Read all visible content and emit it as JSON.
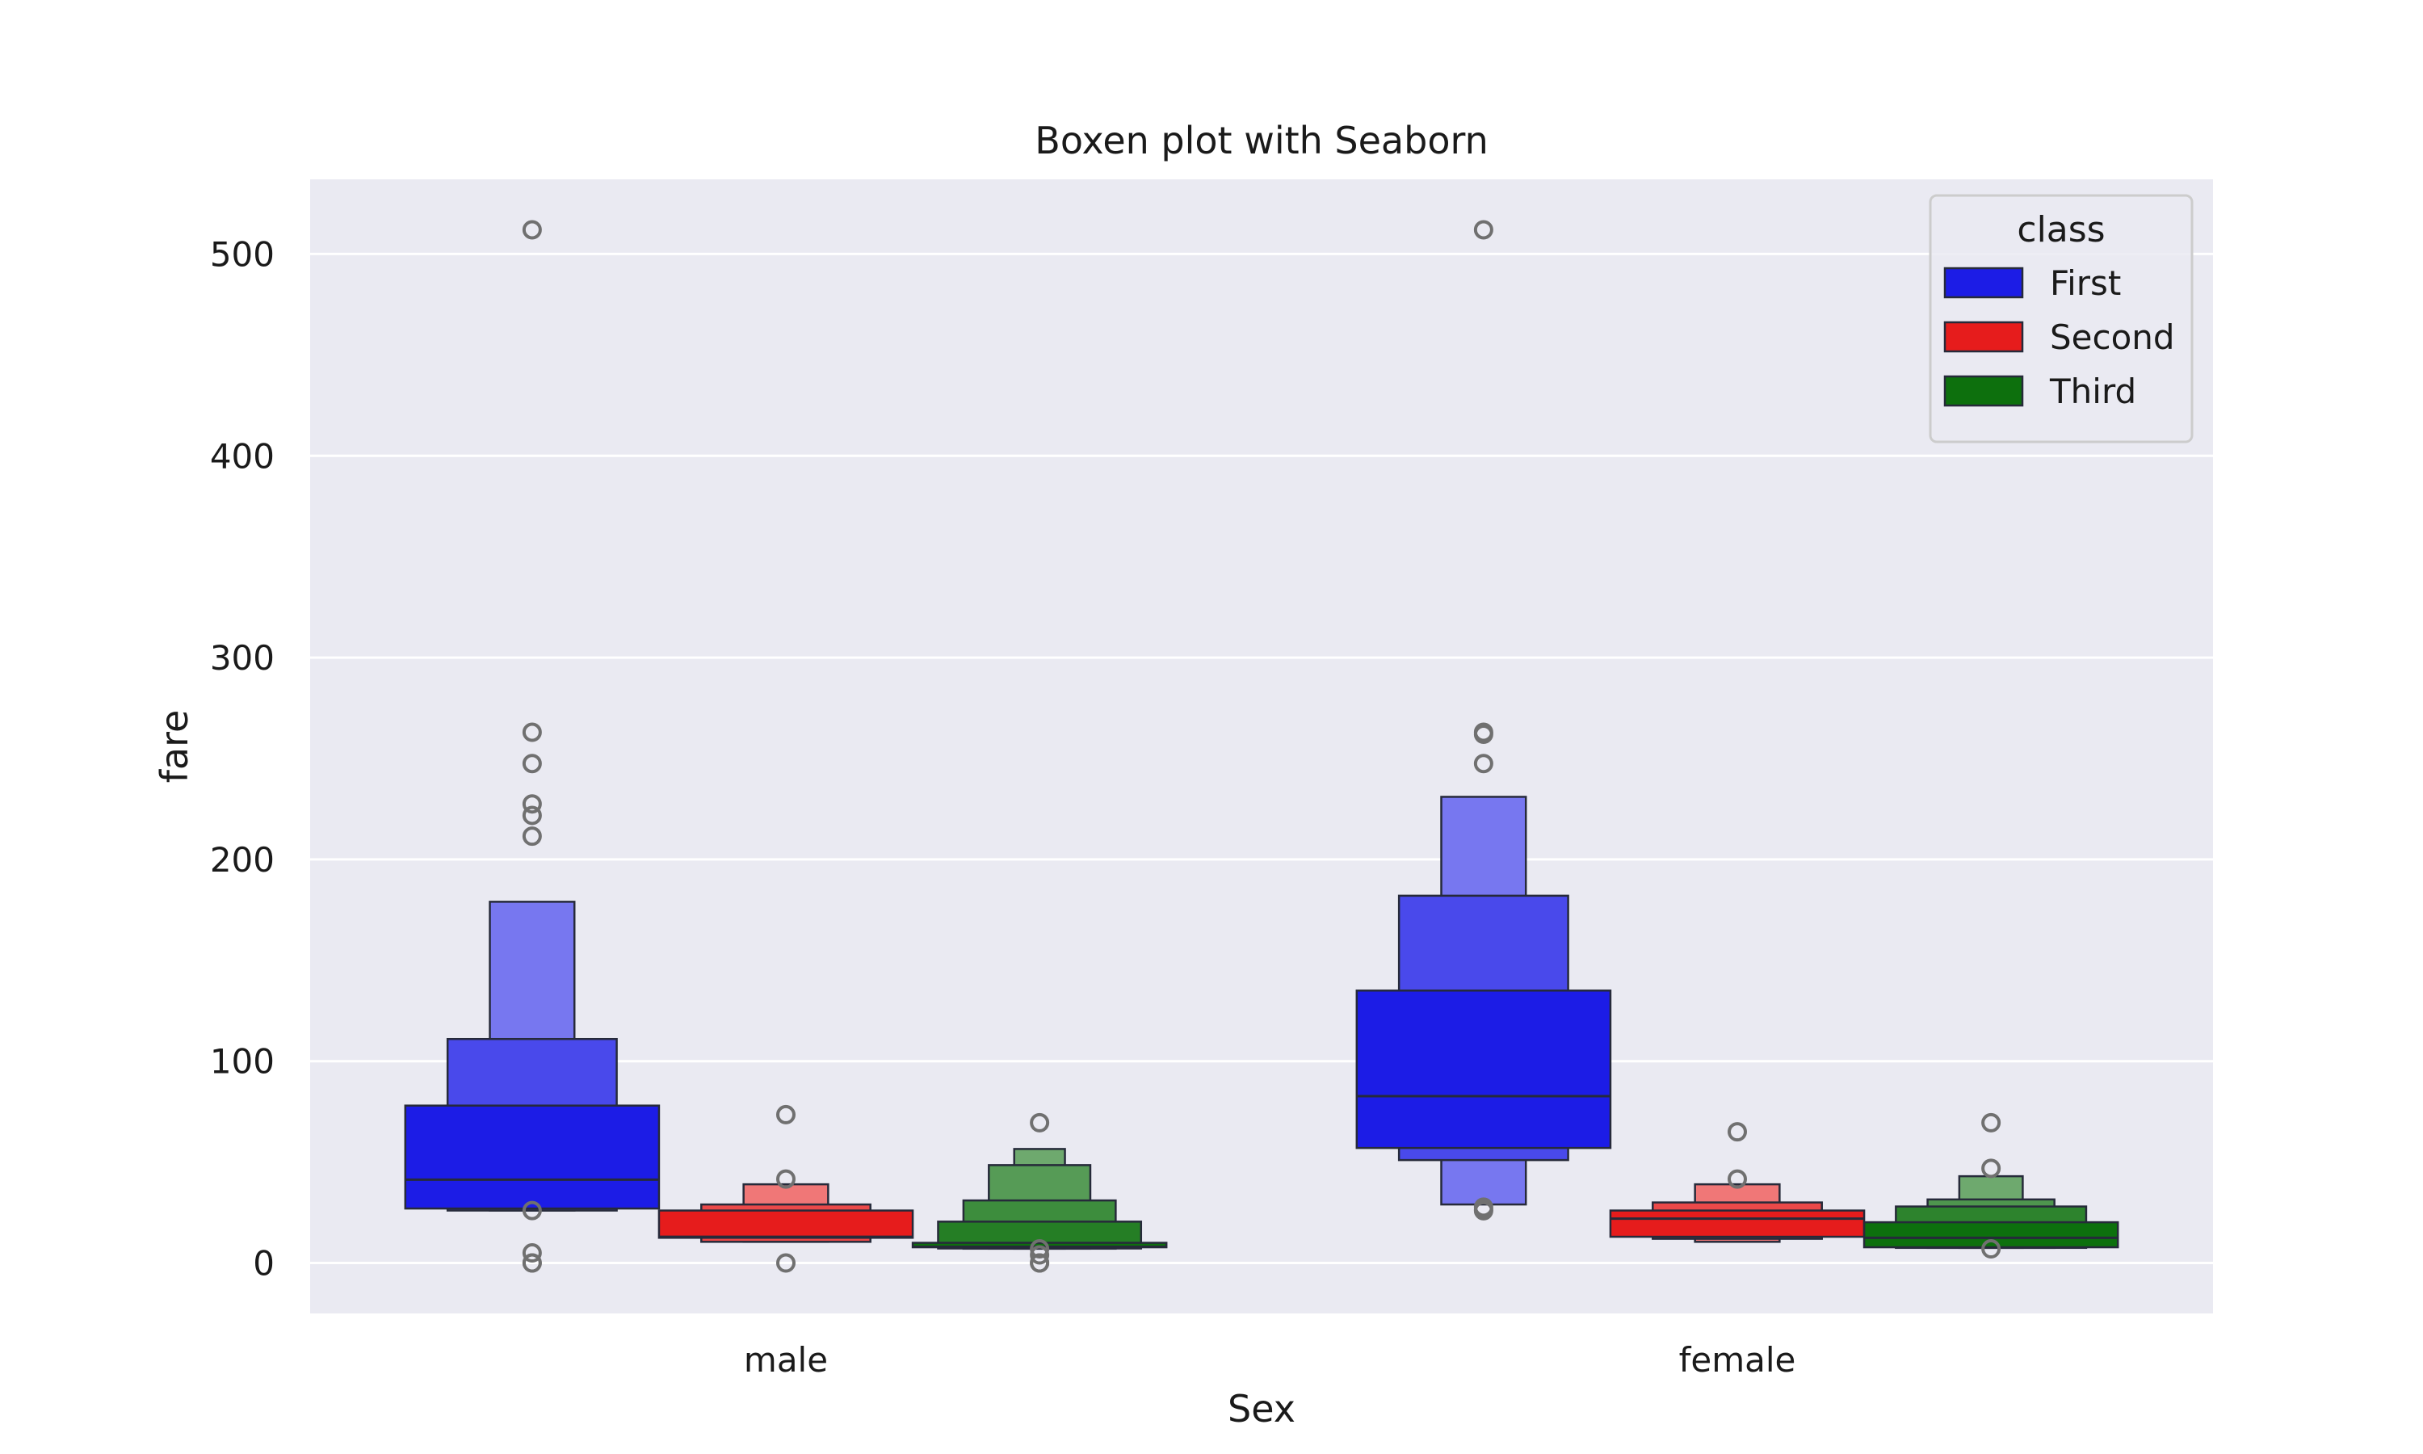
{
  "chart_data": {
    "type": "boxen",
    "title": "Boxen plot with Seaborn",
    "xlabel": "Sex",
    "ylabel": "fare",
    "categories": [
      "male",
      "female"
    ],
    "ylim": [
      -25,
      537
    ],
    "yticks": [
      0,
      100,
      200,
      300,
      400,
      500
    ],
    "grid": true,
    "background_color": "#eaeaf2",
    "legend": {
      "title": "class",
      "position": "top-right",
      "entries": [
        {
          "label": "First",
          "color": "#1c1ce6"
        },
        {
          "label": "Second",
          "color": "#e61c1c"
        },
        {
          "label": "Third",
          "color": "#0d700d"
        }
      ]
    },
    "series": [
      {
        "name": "First",
        "color": "#1c1ce6",
        "groups": [
          {
            "category": "male",
            "median": 41.3,
            "levels": [
              {
                "low": 27,
                "high": 78
              },
              {
                "low": 26,
                "high": 111
              },
              {
                "low": 26,
                "high": 179
              }
            ],
            "outliers": [
              512,
              263,
              247.5,
              227.5,
              221.8,
              211.5,
              26,
              5,
              0,
              0
            ]
          },
          {
            "category": "female",
            "median": 82.7,
            "levels": [
              {
                "low": 57,
                "high": 135
              },
              {
                "low": 51,
                "high": 182
              },
              {
                "low": 29,
                "high": 231
              }
            ],
            "outliers": [
              512,
              263,
              262,
              247.5,
              27.7,
              26.5,
              25.9
            ]
          }
        ]
      },
      {
        "name": "Second",
        "color": "#e61c1c",
        "groups": [
          {
            "category": "male",
            "median": 13,
            "levels": [
              {
                "low": 12.5,
                "high": 26
              },
              {
                "low": 10.5,
                "high": 29
              },
              {
                "low": 10.5,
                "high": 39
              }
            ],
            "outliers": [
              73.5,
              41.6,
              0
            ]
          },
          {
            "category": "female",
            "median": 22,
            "levels": [
              {
                "low": 13,
                "high": 26
              },
              {
                "low": 12,
                "high": 30
              },
              {
                "low": 10.5,
                "high": 39
              }
            ],
            "outliers": [
              65,
              41.6
            ]
          }
        ]
      },
      {
        "name": "Third",
        "color": "#0d700d",
        "groups": [
          {
            "category": "male",
            "median": 8,
            "levels": [
              {
                "low": 7.8,
                "high": 10
              },
              {
                "low": 7.2,
                "high": 20.5
              },
              {
                "low": 7.1,
                "high": 31
              },
              {
                "low": 7.1,
                "high": 48.5
              },
              {
                "low": 7.1,
                "high": 56.5
              }
            ],
            "outliers": [
              69.5,
              7,
              4,
              0,
              0
            ]
          },
          {
            "category": "female",
            "median": 12.5,
            "levels": [
              {
                "low": 7.8,
                "high": 20.2
              },
              {
                "low": 7.5,
                "high": 28
              },
              {
                "low": 7.5,
                "high": 31.5
              },
              {
                "low": 7.5,
                "high": 43
              }
            ],
            "outliers": [
              69.5,
              46.9,
              7
            ]
          }
        ]
      }
    ]
  }
}
